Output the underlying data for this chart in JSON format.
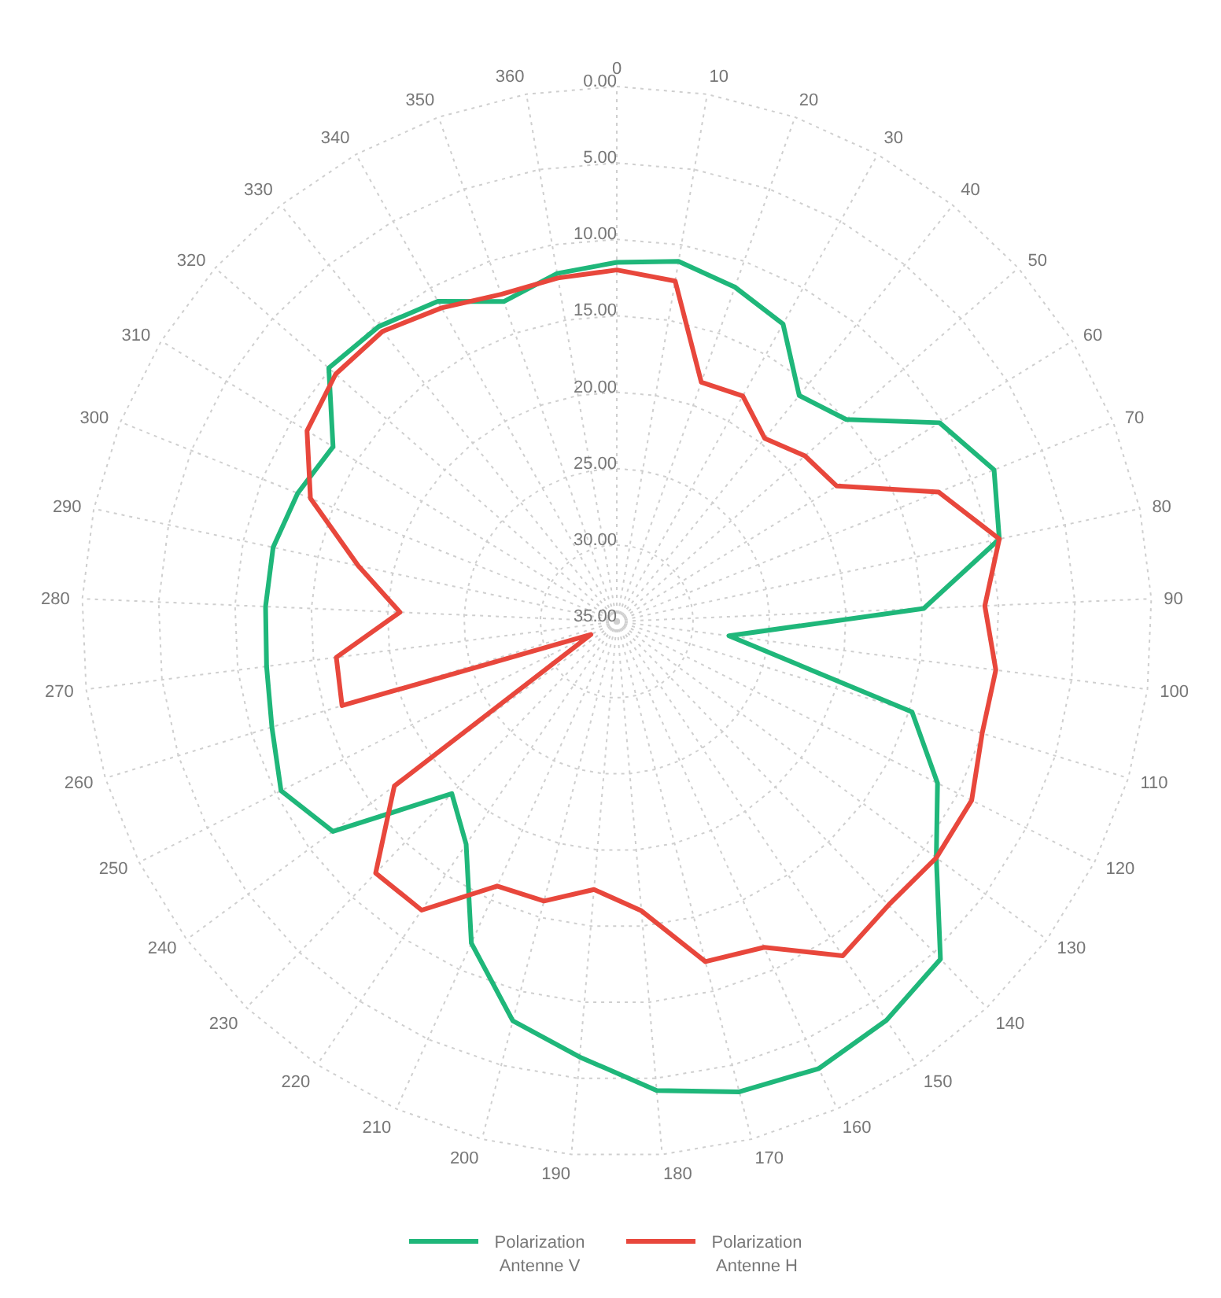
{
  "chart_data": {
    "type": "radar",
    "categories": [
      "0",
      "10",
      "20",
      "30",
      "40",
      "50",
      "60",
      "70",
      "80",
      "90",
      "100",
      "110",
      "120",
      "130",
      "140",
      "150",
      "160",
      "170",
      "180",
      "190",
      "200",
      "210",
      "220",
      "230",
      "240",
      "250",
      "260",
      "270",
      "280",
      "290",
      "300",
      "310",
      "320",
      "330",
      "340",
      "350",
      "360"
    ],
    "series": [
      {
        "name": "Polarization Antenne V",
        "color": "#1fb77a",
        "values": [
          11.5,
          11.1,
          11.8,
          12.7,
          16.0,
          15.0,
          10.2,
          8.4,
          9.4,
          14.9,
          27.6,
          14.8,
          11.5,
          9.0,
          4.4,
          3.5,
          2.9,
          3.2,
          4.2,
          6.4,
          8.0,
          11.9,
          17.4,
          19.4,
          11.9,
          10.4,
          11.4,
          11.9,
          12.0,
          12.0,
          12.5,
          13.2,
          9.9,
          10.2,
          11.0,
          12.8,
          11.9
        ]
      },
      {
        "name": "Polarization Antenne H",
        "color": "#e8473c",
        "values": [
          12.0,
          12.4,
          18.4,
          18.1,
          19.6,
          18.6,
          18.1,
          12.3,
          9.4,
          10.9,
          10.0,
          10.0,
          9.0,
          9.0,
          9.3,
          8.6,
          11.6,
          12.0,
          16.0,
          17.4,
          16.1,
          16.0,
          12.2,
          12.2,
          16.9,
          33.1,
          16.2,
          16.5,
          20.8,
          17.7,
          13.4,
          11.2,
          10.5,
          10.6,
          11.5,
          12.3,
          12.2
        ]
      }
    ],
    "ylim": [
      35,
      0
    ],
    "yticks": [
      {
        "value": 0,
        "label": "0.00"
      },
      {
        "value": 5,
        "label": "5.00"
      },
      {
        "value": 10,
        "label": "10.00"
      },
      {
        "value": 15,
        "label": "15.00"
      },
      {
        "value": 20,
        "label": "20.00"
      },
      {
        "value": 25,
        "label": "25.00"
      },
      {
        "value": 30,
        "label": "30.00"
      },
      {
        "value": 35,
        "label": "35.00"
      }
    ],
    "grid": true,
    "legend": "bottom"
  }
}
